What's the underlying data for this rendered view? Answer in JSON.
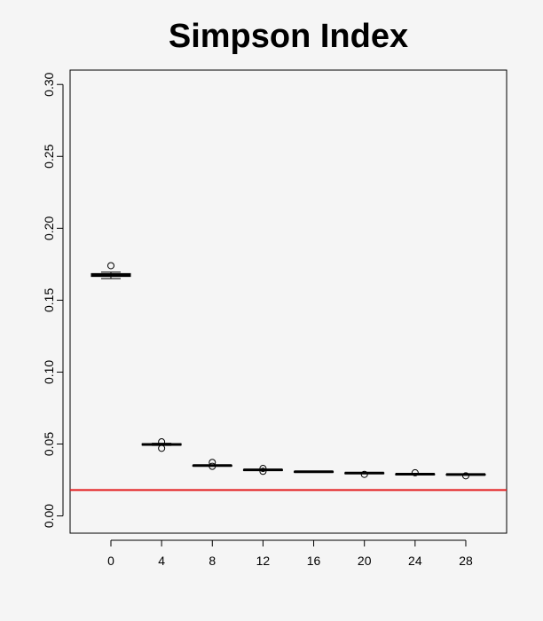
{
  "chart_data": {
    "type": "boxplot",
    "title": "Simpson Index",
    "xlabel": "",
    "ylabel": "",
    "categories": [
      "0",
      "4",
      "8",
      "12",
      "16",
      "20",
      "24",
      "28"
    ],
    "ylim": [
      -0.012,
      0.31
    ],
    "yticks": [
      "0.00",
      "0.05",
      "0.10",
      "0.15",
      "0.20",
      "0.25",
      "0.30"
    ],
    "boxes": [
      {
        "min": 0.165,
        "q1": 0.1665,
        "median": 0.1675,
        "q3": 0.1685,
        "max": 0.1695,
        "outliers": [
          0.174
        ],
        "fill": "#f5a300"
      },
      {
        "min": 0.049,
        "q1": 0.0492,
        "median": 0.0497,
        "q3": 0.0502,
        "max": 0.0505,
        "outliers": [
          0.0515,
          0.047
        ],
        "fill": "#ffffff"
      },
      {
        "min": 0.0346,
        "q1": 0.0348,
        "median": 0.035,
        "q3": 0.0352,
        "max": 0.0354,
        "outliers": [
          0.0372,
          0.0345
        ],
        "fill": "#ffffff"
      },
      {
        "min": 0.0316,
        "q1": 0.0318,
        "median": 0.032,
        "q3": 0.0322,
        "max": 0.0324,
        "outliers": [
          0.033,
          0.031
        ],
        "fill": "#ffffff"
      },
      {
        "min": 0.0303,
        "q1": 0.0305,
        "median": 0.0307,
        "q3": 0.0309,
        "max": 0.0312,
        "outliers": [],
        "fill": "#ffffff"
      },
      {
        "min": 0.0294,
        "q1": 0.0296,
        "median": 0.0298,
        "q3": 0.03,
        "max": 0.0302,
        "outliers": [
          0.0289
        ],
        "fill": "#ffffff"
      },
      {
        "min": 0.0286,
        "q1": 0.0288,
        "median": 0.029,
        "q3": 0.0292,
        "max": 0.0294,
        "outliers": [
          0.03
        ],
        "fill": "#ffffff"
      },
      {
        "min": 0.0284,
        "q1": 0.0286,
        "median": 0.0288,
        "q3": 0.029,
        "max": 0.0292,
        "outliers": [
          0.0279
        ],
        "fill": "#ffffff"
      }
    ],
    "reference_line": {
      "value": 0.018,
      "color": "#e31a1c"
    },
    "grid": false,
    "legend": "none"
  }
}
